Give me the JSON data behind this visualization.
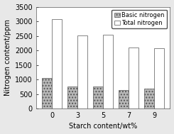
{
  "categories": [
    "0",
    "3",
    "5",
    "7",
    "9"
  ],
  "basic_nitrogen": [
    1050,
    750,
    750,
    640,
    680
  ],
  "total_nitrogen": [
    3080,
    2520,
    2540,
    2100,
    2080
  ],
  "basic_color": "#b8b8b8",
  "basic_hatch": "....",
  "total_color": "#ffffff",
  "total_hatch": "",
  "ylabel": "Nitrogen content/ppm",
  "xlabel": "Starch content/wt%",
  "ylim": [
    0,
    3500
  ],
  "yticks": [
    0,
    500,
    1000,
    1500,
    2000,
    2500,
    3000,
    3500
  ],
  "legend_labels": [
    "Basic nitrogen",
    "Total nitrogen"
  ],
  "bar_width": 0.38,
  "edge_color": "#555555",
  "bg_color": "#e8e8e8"
}
